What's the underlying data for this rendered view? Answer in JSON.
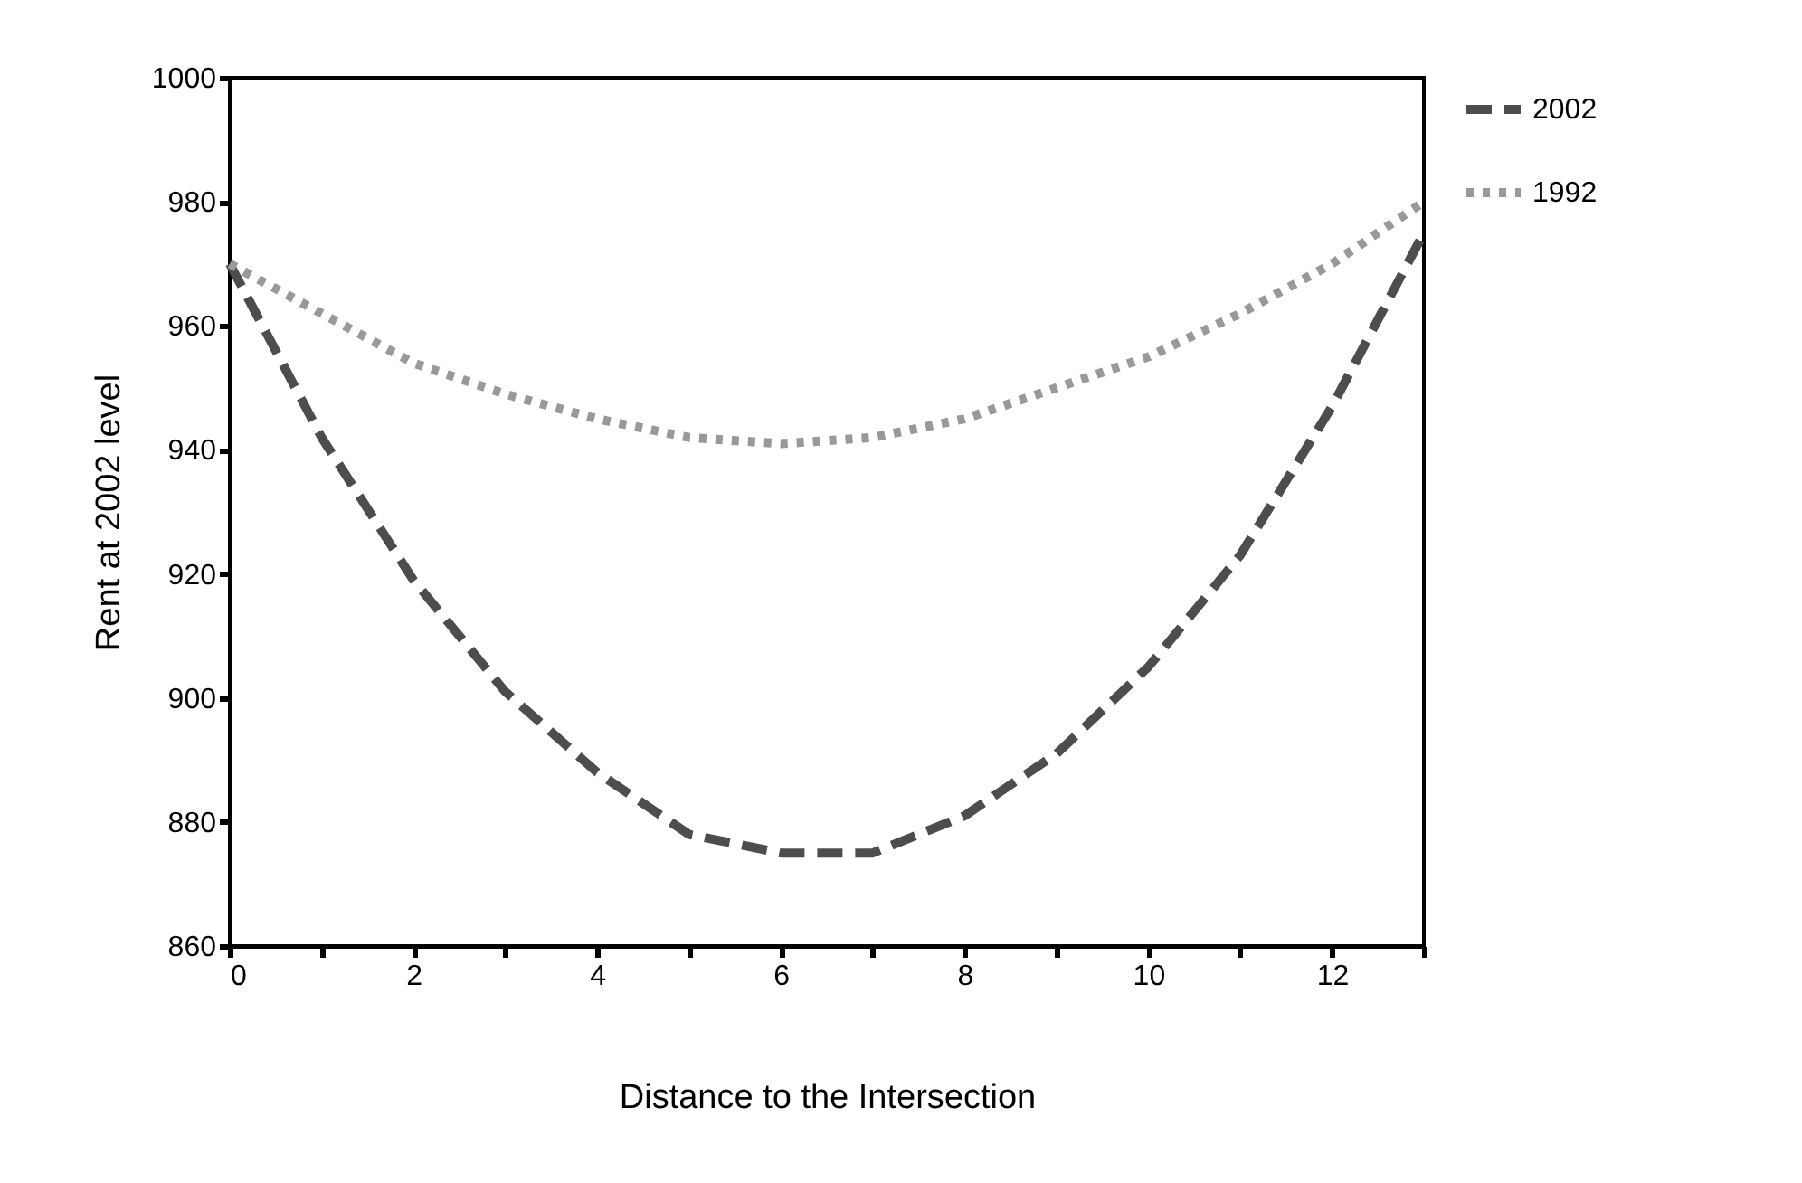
{
  "chart_data": {
    "type": "line",
    "xlabel": "Distance to the Intersection",
    "ylabel": "Rent at 2002 level",
    "x": [
      0,
      1,
      2,
      3,
      4,
      5,
      6,
      7,
      8,
      9,
      10,
      11,
      12,
      13
    ],
    "series": [
      {
        "name": "2002",
        "color": "#4d4d4d",
        "line_style": "dashed",
        "values": [
          970,
          942,
          919,
          901,
          888,
          878,
          875,
          875,
          881,
          891,
          905,
          923,
          947,
          975
        ]
      },
      {
        "name": "1992",
        "color": "#999999",
        "line_style": "dotted",
        "values": [
          970,
          962,
          954,
          949,
          945,
          942,
          941,
          942,
          945,
          950,
          955,
          962,
          970,
          980
        ]
      }
    ],
    "xlim": [
      0,
      13
    ],
    "ylim": [
      860,
      1000
    ],
    "xticks": [
      0,
      {
        "value": 1,
        "label": null
      },
      2,
      {
        "value": 3,
        "label": null
      },
      4,
      {
        "value": 5,
        "label": null
      },
      6,
      {
        "value": 7,
        "label": null
      },
      8,
      {
        "value": 9,
        "label": null
      },
      10,
      {
        "value": 11,
        "label": null
      },
      12,
      {
        "value": 13,
        "label": null
      }
    ],
    "yticks": [
      860,
      880,
      900,
      920,
      940,
      960,
      980,
      1000
    ],
    "grid": false,
    "legend": "right",
    "marker": "none"
  }
}
